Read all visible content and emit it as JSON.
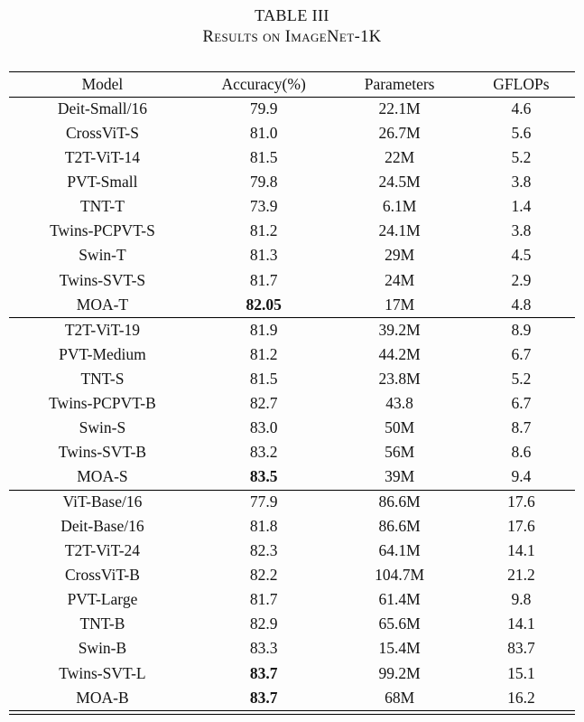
{
  "caption": {
    "line1": "TABLE III",
    "line2": "Results on ImageNet-1K"
  },
  "table": {
    "headers": [
      "Model",
      "Accuracy(%)",
      "Parameters",
      "GFLOPs"
    ],
    "groups": [
      {
        "rows": [
          {
            "model": "Deit-Small/16",
            "accuracy": "79.9",
            "accuracy_bold": false,
            "parameters": "22.1M",
            "gflops": "4.6"
          },
          {
            "model": "CrossViT-S",
            "accuracy": "81.0",
            "accuracy_bold": false,
            "parameters": "26.7M",
            "gflops": "5.6"
          },
          {
            "model": "T2T-ViT-14",
            "accuracy": "81.5",
            "accuracy_bold": false,
            "parameters": "22M",
            "gflops": "5.2"
          },
          {
            "model": "PVT-Small",
            "accuracy": "79.8",
            "accuracy_bold": false,
            "parameters": "24.5M",
            "gflops": "3.8"
          },
          {
            "model": "TNT-T",
            "accuracy": "73.9",
            "accuracy_bold": false,
            "parameters": "6.1M",
            "gflops": "1.4"
          },
          {
            "model": "Twins-PCPVT-S",
            "accuracy": "81.2",
            "accuracy_bold": false,
            "parameters": "24.1M",
            "gflops": "3.8"
          },
          {
            "model": "Swin-T",
            "accuracy": "81.3",
            "accuracy_bold": false,
            "parameters": "29M",
            "gflops": "4.5"
          },
          {
            "model": "Twins-SVT-S",
            "accuracy": "81.7",
            "accuracy_bold": false,
            "parameters": "24M",
            "gflops": "2.9"
          },
          {
            "model": "MOA-T",
            "accuracy": "82.05",
            "accuracy_bold": true,
            "parameters": "17M",
            "gflops": "4.8"
          }
        ]
      },
      {
        "rows": [
          {
            "model": "T2T-ViT-19",
            "accuracy": "81.9",
            "accuracy_bold": false,
            "parameters": "39.2M",
            "gflops": "8.9"
          },
          {
            "model": "PVT-Medium",
            "accuracy": "81.2",
            "accuracy_bold": false,
            "parameters": "44.2M",
            "gflops": "6.7"
          },
          {
            "model": "TNT-S",
            "accuracy": "81.5",
            "accuracy_bold": false,
            "parameters": "23.8M",
            "gflops": "5.2"
          },
          {
            "model": "Twins-PCPVT-B",
            "accuracy": "82.7",
            "accuracy_bold": false,
            "parameters": "43.8",
            "gflops": "6.7"
          },
          {
            "model": "Swin-S",
            "accuracy": "83.0",
            "accuracy_bold": false,
            "parameters": "50M",
            "gflops": "8.7"
          },
          {
            "model": "Twins-SVT-B",
            "accuracy": "83.2",
            "accuracy_bold": false,
            "parameters": "56M",
            "gflops": "8.6"
          },
          {
            "model": "MOA-S",
            "accuracy": "83.5",
            "accuracy_bold": true,
            "parameters": "39M",
            "gflops": "9.4"
          }
        ]
      },
      {
        "rows": [
          {
            "model": "ViT-Base/16",
            "accuracy": "77.9",
            "accuracy_bold": false,
            "parameters": "86.6M",
            "gflops": "17.6"
          },
          {
            "model": "Deit-Base/16",
            "accuracy": "81.8",
            "accuracy_bold": false,
            "parameters": "86.6M",
            "gflops": "17.6"
          },
          {
            "model": "T2T-ViT-24",
            "accuracy": "82.3",
            "accuracy_bold": false,
            "parameters": "64.1M",
            "gflops": "14.1"
          },
          {
            "model": "CrossViT-B",
            "accuracy": "82.2",
            "accuracy_bold": false,
            "parameters": "104.7M",
            "gflops": "21.2"
          },
          {
            "model": "PVT-Large",
            "accuracy": "81.7",
            "accuracy_bold": false,
            "parameters": "61.4M",
            "gflops": "9.8"
          },
          {
            "model": "TNT-B",
            "accuracy": "82.9",
            "accuracy_bold": false,
            "parameters": "65.6M",
            "gflops": "14.1"
          },
          {
            "model": "Swin-B",
            "accuracy": "83.3",
            "accuracy_bold": false,
            "parameters": "15.4M",
            "gflops": "83.7"
          },
          {
            "model": "Twins-SVT-L",
            "accuracy": "83.7",
            "accuracy_bold": true,
            "parameters": "99.2M",
            "gflops": "15.1"
          },
          {
            "model": "MOA-B",
            "accuracy": "83.7",
            "accuracy_bold": true,
            "parameters": "68M",
            "gflops": "16.2"
          }
        ]
      }
    ]
  }
}
